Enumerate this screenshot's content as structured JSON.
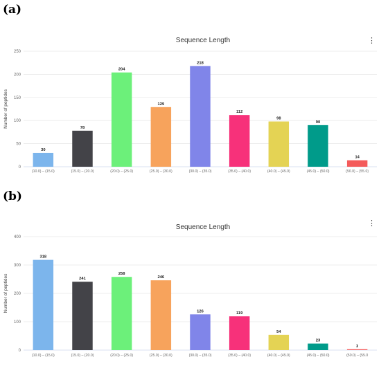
{
  "panels": [
    {
      "label": "(a)",
      "menu_icon": "vertical-ellipsis-icon"
    },
    {
      "label": "(b)",
      "menu_icon": "vertical-ellipsis-icon"
    }
  ],
  "chart_data": [
    {
      "type": "bar",
      "title": "Sequence Length",
      "xlabel": "",
      "ylabel": "Number of peptides",
      "categories": [
        "(10.0) – (15.0)",
        "(15.0) – (20.0)",
        "(20.0) – (25.0)",
        "(25.0) – (30.0)",
        "(30.0) – (35.0)",
        "(35.0) – (40.0)",
        "(40.0) – (45.0)",
        "(45.0) – (50.0)",
        "(50.0) – (55.0)"
      ],
      "values": [
        30,
        78,
        204,
        129,
        218,
        112,
        98,
        90,
        14
      ],
      "colors": [
        "#7cb5ec",
        "#434348",
        "#6cf07a",
        "#f7a35c",
        "#8085e9",
        "#f7317a",
        "#e4d354",
        "#009b8a",
        "#f45b5b"
      ],
      "ylim": [
        0,
        250
      ],
      "yticks": [
        0,
        50,
        100,
        150,
        200,
        250
      ],
      "grid": true
    },
    {
      "type": "bar",
      "title": "Sequence Length",
      "xlabel": "",
      "ylabel": "Number of peptides",
      "categories": [
        "(10.0) – (15.0)",
        "(15.0) – (20.0)",
        "(20.0) – (25.0)",
        "(25.0) – (30.0)",
        "(30.0) – (35.0)",
        "(35.0) – (40.0)",
        "(40.0) – (45.0)",
        "(45.0) – (50.0)",
        "(50.0) – (55.0"
      ],
      "values": [
        318,
        241,
        258,
        246,
        126,
        119,
        54,
        23,
        3
      ],
      "colors": [
        "#7cb5ec",
        "#434348",
        "#6cf07a",
        "#f7a35c",
        "#8085e9",
        "#f7317a",
        "#e4d354",
        "#009b8a",
        "#f45b5b"
      ],
      "ylim": [
        0,
        400
      ],
      "yticks": [
        0,
        100,
        200,
        300,
        400
      ],
      "grid": true
    }
  ]
}
